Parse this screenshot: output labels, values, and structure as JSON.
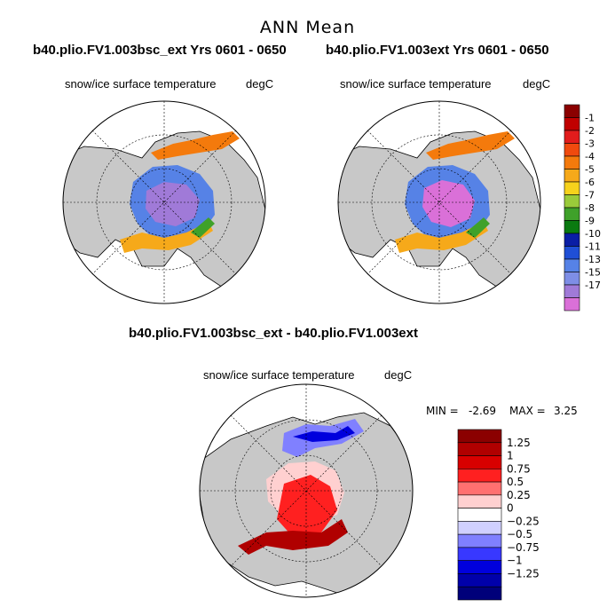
{
  "header": {
    "title": "ANN Mean"
  },
  "panels": [
    {
      "title": "b40.plio.FV1.003bsc_ext  Yrs 0601 - 0650",
      "variable": "snow/ice surface temperature",
      "units": "degC"
    },
    {
      "title": "b40.plio.FV1.003ext  Yrs 0601 - 0650",
      "variable": "snow/ice surface temperature",
      "units": "degC"
    },
    {
      "title": "b40.plio.FV1.003bsc_ext - b40.plio.FV1.003ext",
      "variable": "snow/ice surface temperature",
      "units": "degC"
    }
  ],
  "stats": {
    "min_label": "MIN =",
    "min_value": "-2.69",
    "max_label": "MAX =",
    "max_value": "3.25"
  },
  "colorbar_top": {
    "labels": [
      "-1",
      "-2",
      "-3",
      "-4",
      "-5",
      "-6",
      "-7",
      "-8",
      "-9",
      "-10",
      "-11",
      "-13",
      "-15",
      "-17"
    ],
    "colors": [
      "#8b0000",
      "#c00000",
      "#e21c1c",
      "#f04a0e",
      "#f47a0c",
      "#f6a91a",
      "#f6d21c",
      "#9acb3a",
      "#3fa12a",
      "#0a7a10",
      "#0a1ea5",
      "#1f4fd6",
      "#5682e6",
      "#7e8ee6",
      "#a07ad8",
      "#da70d8"
    ]
  },
  "colorbar_diff": {
    "labels": [
      "1.25",
      "1",
      "0.75",
      "0.5",
      "0.25",
      "0",
      "−0.25",
      "−0.5",
      "−0.75",
      "−1",
      "−1.25"
    ],
    "colors": [
      "#8b0000",
      "#b00000",
      "#d80000",
      "#ff2020",
      "#ff7070",
      "#ffd0d0",
      "#ffffff",
      "#d0d0ff",
      "#8080ff",
      "#3838ff",
      "#0000dd",
      "#0000aa",
      "#00007a"
    ]
  }
}
